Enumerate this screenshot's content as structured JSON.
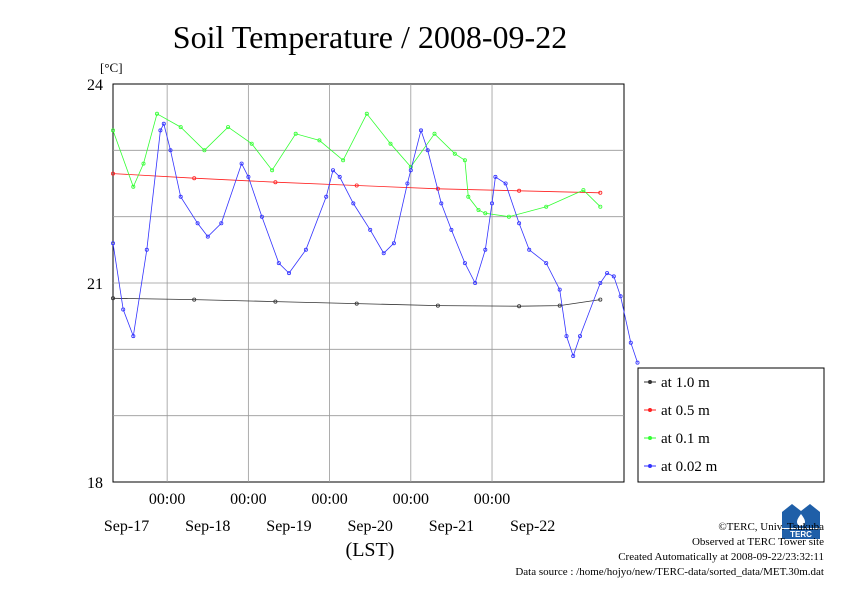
{
  "chart_data": {
    "type": "line",
    "title": "Soil Temperature / 2008-09-22",
    "ylabel": "[°C]",
    "xlabel": "(LST)",
    "ylim": [
      18,
      24
    ],
    "yticks": [
      "24",
      "21",
      "18"
    ],
    "xlim": [
      "2008-09-16 08:00",
      "2008-09-22 08:00"
    ],
    "xticks": [
      "00:00",
      "00:00",
      "00:00",
      "00:00",
      "00:00"
    ],
    "xdays": [
      "Sep-17",
      "Sep-18",
      "Sep-19",
      "Sep-20",
      "Sep-21",
      "Sep-22"
    ],
    "grid": true,
    "legend_position": "right",
    "series": [
      {
        "name": "at 1.0 m",
        "color": "#333333",
        "points": [
          [
            0,
            20.77
          ],
          [
            24,
            20.75
          ],
          [
            48,
            20.72
          ],
          [
            72,
            20.69
          ],
          [
            96,
            20.66
          ],
          [
            120,
            20.65
          ],
          [
            132,
            20.66
          ],
          [
            144,
            20.75
          ]
        ]
      },
      {
        "name": "at 0.5 m",
        "color": "#ff2020",
        "points": [
          [
            0,
            22.65
          ],
          [
            24,
            22.58
          ],
          [
            48,
            22.52
          ],
          [
            72,
            22.47
          ],
          [
            96,
            22.42
          ],
          [
            120,
            22.39
          ],
          [
            144,
            22.36
          ]
        ]
      },
      {
        "name": "at 0.1 m",
        "color": "#33ff33",
        "points": [
          [
            0,
            23.3
          ],
          [
            6,
            22.45
          ],
          [
            9,
            22.8
          ],
          [
            13,
            23.55
          ],
          [
            20,
            23.35
          ],
          [
            27,
            23.0
          ],
          [
            34,
            23.35
          ],
          [
            41,
            23.1
          ],
          [
            47,
            22.7
          ],
          [
            54,
            23.25
          ],
          [
            61,
            23.15
          ],
          [
            68,
            22.85
          ],
          [
            75,
            23.55
          ],
          [
            82,
            23.1
          ],
          [
            88,
            22.75
          ],
          [
            95,
            23.25
          ],
          [
            101,
            22.95
          ],
          [
            104,
            22.85
          ],
          [
            105,
            22.3
          ],
          [
            108,
            22.1
          ],
          [
            110,
            22.05
          ],
          [
            117,
            22.0
          ],
          [
            128,
            22.15
          ],
          [
            139,
            22.4
          ],
          [
            144,
            22.15
          ]
        ]
      },
      {
        "name": "at 0.02 m",
        "color": "#3333ff",
        "points": [
          [
            0,
            21.6
          ],
          [
            3,
            20.6
          ],
          [
            6,
            20.2
          ],
          [
            10,
            21.5
          ],
          [
            14,
            23.3
          ],
          [
            15,
            23.4
          ],
          [
            17,
            23.0
          ],
          [
            20,
            22.3
          ],
          [
            25,
            21.9
          ],
          [
            28,
            21.7
          ],
          [
            32,
            21.9
          ],
          [
            38,
            22.8
          ],
          [
            40,
            22.6
          ],
          [
            44,
            22.0
          ],
          [
            49,
            21.3
          ],
          [
            52,
            21.15
          ],
          [
            57,
            21.5
          ],
          [
            63,
            22.3
          ],
          [
            65,
            22.7
          ],
          [
            67,
            22.6
          ],
          [
            71,
            22.2
          ],
          [
            76,
            21.8
          ],
          [
            80,
            21.45
          ],
          [
            83,
            21.6
          ],
          [
            87,
            22.5
          ],
          [
            88,
            22.7
          ],
          [
            91,
            23.3
          ],
          [
            93,
            23.0
          ],
          [
            97,
            22.2
          ],
          [
            100,
            21.8
          ],
          [
            104,
            21.3
          ],
          [
            107,
            21.0
          ],
          [
            110,
            21.5
          ],
          [
            112,
            22.2
          ],
          [
            113,
            22.6
          ],
          [
            116,
            22.5
          ],
          [
            120,
            21.9
          ],
          [
            123,
            21.5
          ],
          [
            128,
            21.3
          ],
          [
            132,
            20.9
          ],
          [
            134,
            20.2
          ],
          [
            136,
            19.9
          ],
          [
            138,
            20.2
          ],
          [
            144,
            21.0
          ],
          [
            146,
            21.15
          ],
          [
            148,
            21.1
          ],
          [
            150,
            20.8
          ],
          [
            153,
            20.1
          ],
          [
            155,
            19.8
          ]
        ]
      }
    ]
  },
  "credits": {
    "copyright": "©TERC, Univ. Tsukuba",
    "observed": "Observed at TERC Tower site",
    "created": "Created Automatically at 2008-09-22/23:32:11",
    "source": "Data source : /home/hojyo/new/TERC-data/sorted_data/MET.30m.dat"
  },
  "logo": {
    "text": "TERC"
  }
}
